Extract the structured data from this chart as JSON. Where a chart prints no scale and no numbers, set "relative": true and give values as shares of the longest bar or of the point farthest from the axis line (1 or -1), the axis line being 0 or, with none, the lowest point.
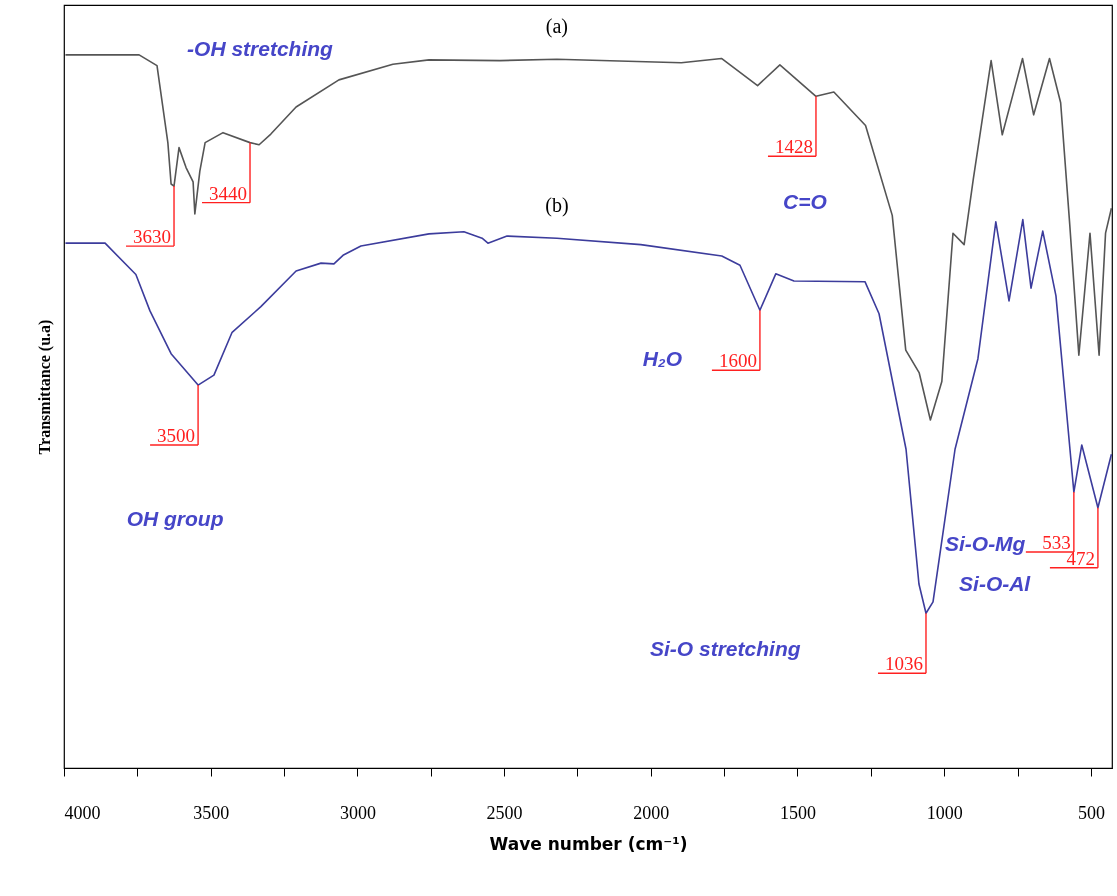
{
  "chart_data": {
    "type": "line",
    "relative": true,
    "xlabel": "Wave number (cm⁻¹)",
    "ylabel": "Transmittance (u.a)",
    "xlim": [
      4000,
      428
    ],
    "xticks": [
      4000,
      {
        "value": 3750,
        "label": null
      },
      3500,
      {
        "value": 3250,
        "label": null
      },
      3000,
      {
        "value": 2750,
        "label": null
      },
      2500,
      {
        "value": 2250,
        "label": null
      },
      2000,
      {
        "value": 1750,
        "label": null
      },
      1500,
      {
        "value": 1250,
        "label": null
      },
      1000,
      {
        "value": 750,
        "label": null
      },
      500
    ],
    "grid": false,
    "legend": false,
    "series": [
      {
        "name": "(a)",
        "color": "#555555",
        "x": [
          3995,
          3744,
          3683,
          3646,
          3635,
          3625,
          3608,
          3584,
          3560,
          3554,
          3537,
          3519,
          3458,
          3366,
          3335,
          3295,
          3209,
          3063,
          2879,
          2756,
          2514,
          2320,
          1896,
          1759,
          1636,
          1560,
          1437,
          1376,
          1268,
          1177,
          1131,
          1085,
          1047,
          1008,
          970,
          932,
          901,
          840,
          802,
          733,
          695,
          641,
          603,
          572,
          541,
          503,
          472,
          450,
          430
        ],
        "values": [
          1.0,
          1.0,
          0.985,
          0.877,
          0.819,
          0.816,
          0.87,
          0.842,
          0.822,
          0.777,
          0.837,
          0.877,
          0.891,
          0.877,
          0.874,
          0.889,
          0.927,
          0.965,
          0.987,
          0.993,
          0.992,
          0.994,
          0.989,
          0.995,
          0.957,
          0.986,
          0.942,
          0.948,
          0.901,
          0.775,
          0.586,
          0.554,
          0.488,
          0.542,
          0.75,
          0.734,
          0.825,
          0.992,
          0.888,
          0.995,
          0.916,
          0.995,
          0.933,
          0.762,
          0.579,
          0.75,
          0.579,
          0.75,
          0.785
        ]
      },
      {
        "name": "(b)",
        "color": "#3c3c9c",
        "x": [
          3995,
          3860,
          3755,
          3707,
          3635,
          3543,
          3489,
          3427,
          3329,
          3209,
          3124,
          3080,
          3049,
          2988,
          2756,
          2637,
          2575,
          2555,
          2490,
          2320,
          2034,
          1758,
          1696,
          1628,
          1574,
          1512,
          1270,
          1222,
          1130,
          1086,
          1062,
          1038,
          963,
          885,
          824,
          779,
          732,
          704,
          664,
          619,
          558,
          531,
          476,
          430
        ],
        "values": [
          0.736,
          0.736,
          0.692,
          0.641,
          0.581,
          0.537,
          0.551,
          0.611,
          0.647,
          0.697,
          0.708,
          0.707,
          0.719,
          0.732,
          0.749,
          0.752,
          0.743,
          0.736,
          0.746,
          0.743,
          0.734,
          0.718,
          0.705,
          0.642,
          0.693,
          0.683,
          0.682,
          0.637,
          0.447,
          0.258,
          0.217,
          0.233,
          0.447,
          0.574,
          0.766,
          0.655,
          0.769,
          0.673,
          0.753,
          0.662,
          0.387,
          0.453,
          0.365,
          0.44
        ]
      }
    ],
    "annotations": [
      {
        "text": "3630",
        "x": 3625,
        "y": 0.816
      },
      {
        "text": "3440",
        "x": 3366,
        "y": 0.877
      },
      {
        "text": "3500",
        "x": 3543,
        "y": 0.537
      },
      {
        "text": "1600",
        "x": 1628,
        "y": 0.642
      },
      {
        "text": "1428",
        "x": 1437,
        "y": 0.942
      },
      {
        "text": "1036",
        "x": 1062,
        "y": 0.217
      },
      {
        "text": "533",
        "x": 558,
        "y": 0.387
      },
      {
        "text": "472",
        "x": 476,
        "y": 0.365
      },
      "-OH stretching",
      "C=O",
      "H₂O",
      "OH group",
      "Si-O stretching",
      "Si-O-Mg",
      "Si-O-Al"
    ]
  }
}
